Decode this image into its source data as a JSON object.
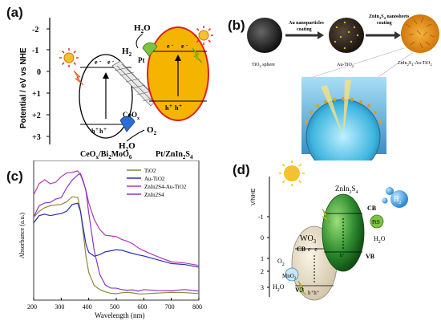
{
  "panels": {
    "a": {
      "label": "(a)",
      "ylabel": "Potential / eV vs NHE",
      "ticks": [
        "-2",
        "-1",
        "0",
        "+1",
        "+2",
        "+3"
      ],
      "left_material": "CeO",
      "left_material_sub1": "x",
      "left_material_mid": "/Bi",
      "left_material_sub2": "2",
      "left_material_end": "MoO",
      "left_material_sub3": "6",
      "right_material": "Pt/ZnIn",
      "right_material_sub1": "2",
      "right_material_mid": "S",
      "right_material_sub2": "4",
      "h2o_top": "H",
      "h2o_top_sub": "2",
      "h2o_top_end": "O",
      "h2": "H",
      "h2_sub": "2",
      "pt": "Pt",
      "cooxtxt": "CoO",
      "cooxsub": "x",
      "o2": "O",
      "o2_sub": "2",
      "h2o_bottom": "H",
      "h2o_bottom_sub": "2",
      "h2o_bottom_end": "O",
      "electron": "e",
      "hole": "h",
      "plus": "+",
      "minus": "-"
    },
    "b": {
      "label": "(b)",
      "step1": "Au nanoparticles",
      "step1b": "coating",
      "step2": "ZnIn",
      "step2_sub1": "2",
      "step2_mid": "S",
      "step2_sub2": "4",
      "step2_end": " nanosheets",
      "step2b": "coating",
      "sphere1": "TiO",
      "sphere1_sub": "2",
      "sphere1_end": " sphere",
      "sphere2": "Au-TiO",
      "sphere2_sub": "2",
      "sphere3": "ZnIn",
      "sphere3_sub1": "2",
      "sphere3_mid": "S",
      "sphere3_sub2": "4",
      "sphere3_end": "-Au-TiO",
      "sphere3_sub3": "2"
    },
    "c": {
      "label": "(c)",
      "xlabel": "Wavelength (nm)",
      "ylabel": "Absorbance (a.u.)",
      "xticks": [
        "200",
        "300",
        "400",
        "500",
        "600",
        "700",
        "800"
      ]
    },
    "d": {
      "label": "(d)",
      "ylabel": "V/NHE",
      "ticks": [
        "-1",
        "0",
        "1",
        "2",
        "3"
      ],
      "znin": "ZnIn",
      "znin_sub1": "2",
      "znin_mid": "S",
      "znin_sub2": "4",
      "wo3": "WO",
      "wo3_sub": "3",
      "cb": "CB",
      "vb": "VB",
      "h2": "H",
      "h2_sub": "2",
      "pts": "PtS",
      "h2o": "H",
      "h2o_sub": "2",
      "h2o_end": "O",
      "o2": "O",
      "o2_sub": "2",
      "mno2": "MnO",
      "mno2_sub": "2",
      "h2o_left": "H",
      "h2o_left_sub": "2",
      "h2o_left_end": "O",
      "ee": "e· e·",
      "hh": "h⁺h⁺",
      "hplus": "h⁺"
    }
  },
  "chart_data": {
    "type": "line",
    "xlabel": "Wavelength (nm)",
    "ylabel": "Absorbance (a.u.)",
    "xlim": [
      200,
      800
    ],
    "ylim": [
      0,
      1
    ],
    "x": [
      200,
      220,
      240,
      260,
      280,
      300,
      320,
      340,
      360,
      370,
      380,
      390,
      400,
      420,
      440,
      460,
      480,
      500,
      520,
      540,
      560,
      580,
      600,
      650,
      700,
      750,
      800
    ],
    "series": [
      {
        "name": "TiO2",
        "color": "#8a8a3a",
        "values": [
          0.6,
          0.64,
          0.66,
          0.67,
          0.68,
          0.69,
          0.71,
          0.74,
          0.73,
          0.64,
          0.48,
          0.32,
          0.2,
          0.1,
          0.07,
          0.06,
          0.055,
          0.05,
          0.05,
          0.05,
          0.05,
          0.05,
          0.05,
          0.05,
          0.05,
          0.05,
          0.05
        ]
      },
      {
        "name": "Au-TiO2",
        "color": "#2b2bbf",
        "values": [
          0.55,
          0.6,
          0.61,
          0.6,
          0.61,
          0.62,
          0.64,
          0.69,
          0.7,
          0.64,
          0.52,
          0.4,
          0.34,
          0.31,
          0.32,
          0.34,
          0.35,
          0.36,
          0.36,
          0.35,
          0.34,
          0.33,
          0.32,
          0.29,
          0.26,
          0.25,
          0.23
        ]
      },
      {
        "name": "ZnIn2S4-Au-TiO2",
        "color": "#b23ab8",
        "values": [
          0.75,
          0.84,
          0.86,
          0.83,
          0.85,
          0.88,
          0.91,
          0.92,
          0.92,
          0.9,
          0.85,
          0.78,
          0.7,
          0.58,
          0.5,
          0.47,
          0.46,
          0.45,
          0.44,
          0.42,
          0.4,
          0.38,
          0.35,
          0.31,
          0.28,
          0.26,
          0.25
        ]
      },
      {
        "name": "ZnIn2S4",
        "color": "#8c34c9",
        "values": [
          0.6,
          0.67,
          0.7,
          0.7,
          0.72,
          0.74,
          0.8,
          0.86,
          0.9,
          0.9,
          0.86,
          0.78,
          0.62,
          0.36,
          0.18,
          0.11,
          0.09,
          0.08,
          0.08,
          0.07,
          0.07,
          0.07,
          0.07,
          0.07,
          0.07,
          0.07,
          0.07
        ]
      }
    ],
    "legend_position": "top-right",
    "grid": false
  },
  "colors": {
    "yellow": "#f5b400",
    "red_outline": "#e02020",
    "green": "#2e8b2e",
    "blue_drop": "#3aa0e0",
    "sun": "#f2c230"
  }
}
